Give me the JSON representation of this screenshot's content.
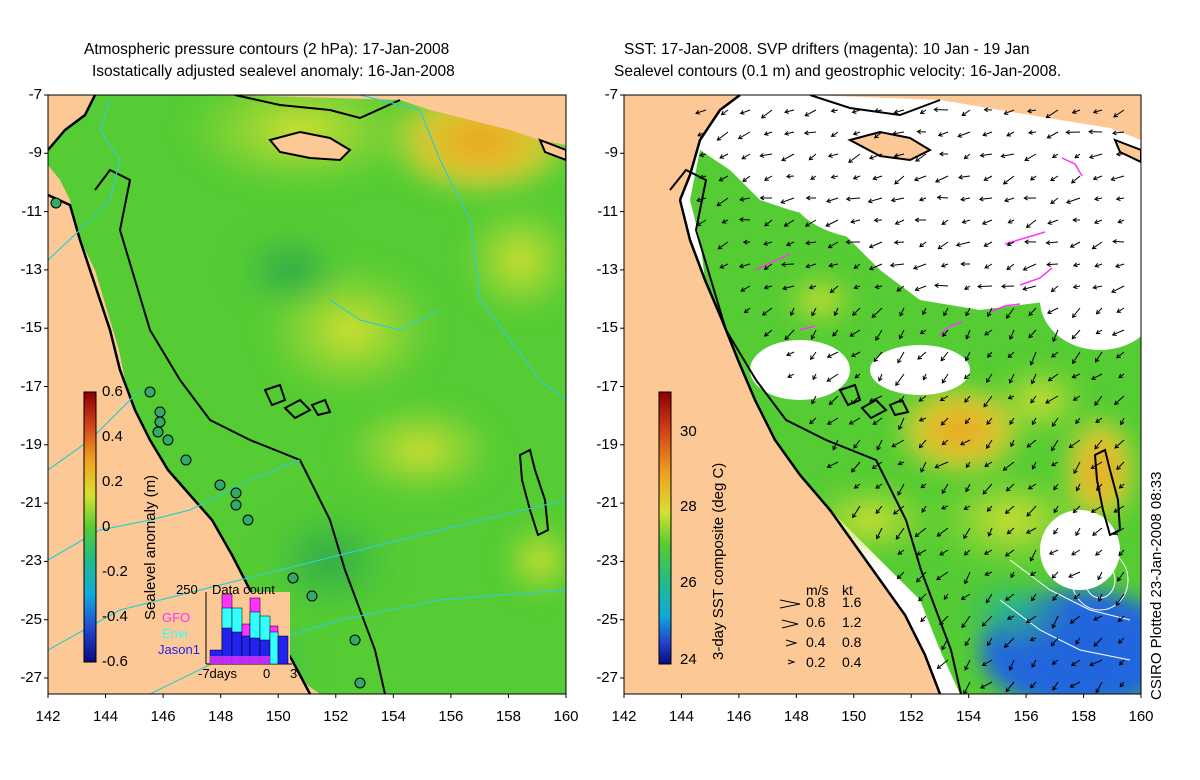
{
  "left_panel": {
    "title_line1": "Atmospheric pressure contours (2 hPa): 17-Jan-2008",
    "title_line2": "Isostatically adjusted sealevel anomaly: 16-Jan-2008",
    "colorbar_label": "Sealevel anomaly (m)",
    "colorbar_ticks": [
      "0.6",
      "0.4",
      "0.2",
      "0",
      "-0.2",
      "-0.4",
      "-0.6"
    ],
    "inset": {
      "title": "Data count",
      "y_max_label": "250",
      "x_labels": [
        "-7days",
        "0",
        "3"
      ],
      "legend": [
        {
          "name": "GFO",
          "color": "#ff33ff"
        },
        {
          "name": "Envi",
          "color": "#33ffff"
        },
        {
          "name": "Jason1",
          "color": "#2222ee"
        }
      ]
    }
  },
  "right_panel": {
    "title_line1": "SST: 17-Jan-2008. SVP drifters (magenta): 10 Jan - 19 Jan",
    "title_line2": "Sealevel contours (0.1 m) and geostrophic velocity: 16-Jan-2008.",
    "colorbar_label": "3-day SST composite (deg C)",
    "colorbar_ticks": [
      "30",
      "28",
      "26",
      "24"
    ],
    "velocity_key": {
      "header_ms": "m/s",
      "header_kt": "kt",
      "rows": [
        {
          "ms": "0.8",
          "kt": "1.6"
        },
        {
          "ms": "0.6",
          "kt": "1.2"
        },
        {
          "ms": "0.4",
          "kt": "0.8"
        },
        {
          "ms": "0.2",
          "kt": "0.4"
        }
      ]
    }
  },
  "axes": {
    "y_ticks": [
      "-7",
      "-9",
      "-11",
      "-13",
      "-15",
      "-17",
      "-19",
      "-21",
      "-23",
      "-25",
      "-27"
    ],
    "x_ticks": [
      "142",
      "144",
      "146",
      "148",
      "150",
      "152",
      "154",
      "156",
      "158",
      "160"
    ]
  },
  "plotted_note": "CSIRO Plotted 23-Jan-2008 08:33",
  "colors": {
    "land": "#fcc896",
    "sea_green": "#55cc33",
    "coast": "#000000",
    "pressure_contour": "#33cccc",
    "drifter": "#ff33ff"
  }
}
